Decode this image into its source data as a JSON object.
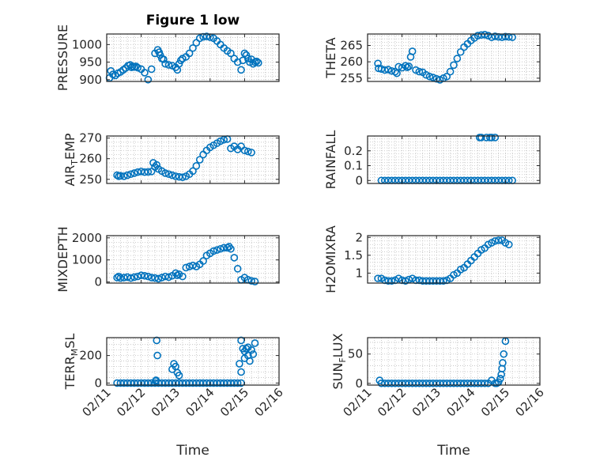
{
  "figure": {
    "title": "Figure 1 low",
    "marker_color": "#0072bd",
    "axis_color": "#262626",
    "grid_color": "#bfbfbf"
  },
  "chart_data": [
    {
      "type": "scatter",
      "marker": "circle-open",
      "title": "Figure 1 low",
      "ylabel": "PRESSURE",
      "ylabel_main": "PRESSURE",
      "ylabel_sub": "",
      "ylabel_tail": "",
      "xlabel": "",
      "ylim": [
        895,
        1030
      ],
      "yticks": [
        900,
        950,
        1000
      ],
      "ytick_labels": [
        "900",
        "950",
        "1000"
      ],
      "xlim": [
        0,
        5
      ],
      "xticks": [
        0,
        1,
        2,
        3,
        4,
        5
      ],
      "grid": true,
      "x": [
        0.08,
        0.12,
        0.18,
        0.25,
        0.32,
        0.4,
        0.48,
        0.55,
        0.62,
        0.68,
        0.72,
        0.75,
        0.8,
        0.85,
        0.9,
        1.0,
        1.1,
        1.2,
        1.3,
        1.4,
        1.48,
        1.52,
        1.55,
        1.6,
        1.65,
        1.7,
        1.8,
        1.9,
        2.0,
        2.05,
        2.1,
        2.15,
        2.2,
        2.3,
        2.4,
        2.5,
        2.6,
        2.7,
        2.8,
        2.9,
        3.0,
        3.1,
        3.2,
        3.3,
        3.4,
        3.5,
        3.6,
        3.7,
        3.8,
        3.9,
        3.95,
        4.0,
        4.05,
        4.1,
        4.15,
        4.2,
        4.25,
        4.3,
        4.35,
        4.4
      ],
      "y": [
        905,
        925,
        915,
        912,
        918,
        922,
        928,
        933,
        940,
        942,
        935,
        938,
        936,
        938,
        934,
        930,
        920,
        900,
        930,
        975,
        985,
        978,
        970,
        960,
        958,
        945,
        942,
        940,
        935,
        928,
        945,
        955,
        960,
        965,
        975,
        990,
        1005,
        1018,
        1022,
        1023,
        1021,
        1018,
        1010,
        1000,
        990,
        982,
        975,
        960,
        950,
        928,
        955,
        975,
        970,
        960,
        950,
        958,
        945,
        950,
        952,
        948
      ]
    },
    {
      "type": "scatter",
      "marker": "circle-open",
      "ylabel": "THETA",
      "ylabel_main": "THETA",
      "ylabel_sub": "",
      "ylabel_tail": "",
      "xlabel": "",
      "ylim": [
        254,
        268.5
      ],
      "yticks": [
        255,
        260,
        265
      ],
      "ytick_labels": [
        "255",
        "260",
        "265"
      ],
      "xlim": [
        0,
        5
      ],
      "xticks": [
        0,
        1,
        2,
        3,
        4,
        5
      ],
      "grid": true,
      "x": [
        0.3,
        0.32,
        0.4,
        0.5,
        0.6,
        0.7,
        0.8,
        0.85,
        0.9,
        1.0,
        1.1,
        1.15,
        1.2,
        1.25,
        1.3,
        1.4,
        1.5,
        1.6,
        1.7,
        1.8,
        1.9,
        2.0,
        2.1,
        2.2,
        2.3,
        2.4,
        2.5,
        2.6,
        2.7,
        2.8,
        2.9,
        3.0,
        3.1,
        3.2,
        3.3,
        3.4,
        3.5,
        3.6,
        3.7,
        3.8,
        3.9,
        4.0,
        4.1,
        4.2
      ],
      "y": [
        259.5,
        258,
        257.8,
        257.5,
        257.6,
        257.2,
        257,
        256.5,
        258.5,
        258.2,
        258.8,
        258.3,
        258.6,
        261.5,
        263.2,
        257.5,
        257,
        256.8,
        256,
        255.5,
        255.2,
        254.8,
        254.5,
        255,
        255.5,
        257,
        259,
        261,
        263,
        264.5,
        265.5,
        266.5,
        267.3,
        268,
        268.2,
        268.3,
        268,
        267.5,
        267.8,
        267.6,
        267.5,
        267.7,
        267.6,
        267.5
      ]
    },
    {
      "type": "scatter",
      "marker": "circle-open",
      "ylabel": "AIR_TEMP",
      "ylabel_main": "AIR",
      "ylabel_sub": "T",
      "ylabel_tail": "EMP",
      "xlabel": "",
      "ylim": [
        248,
        271
      ],
      "yticks": [
        250,
        260,
        270
      ],
      "ytick_labels": [
        "250",
        "260",
        "270"
      ],
      "xlim": [
        0,
        5
      ],
      "xticks": [
        0,
        1,
        2,
        3,
        4,
        5
      ],
      "grid": true,
      "x": [
        0.3,
        0.35,
        0.4,
        0.5,
        0.6,
        0.7,
        0.8,
        0.9,
        1.0,
        1.1,
        1.2,
        1.3,
        1.35,
        1.4,
        1.45,
        1.5,
        1.6,
        1.7,
        1.8,
        1.9,
        2.0,
        2.1,
        2.2,
        2.3,
        2.4,
        2.5,
        2.6,
        2.7,
        2.8,
        2.9,
        3.0,
        3.1,
        3.2,
        3.3,
        3.4,
        3.5,
        3.6,
        3.7,
        3.8,
        3.9,
        4.0,
        4.1,
        4.2
      ],
      "y": [
        252,
        251.5,
        251.7,
        251.5,
        252,
        252.5,
        253,
        253.5,
        253.8,
        253.5,
        253.6,
        253.8,
        258,
        256,
        257,
        255,
        254,
        253,
        252.5,
        252,
        251.5,
        251.2,
        251,
        251.5,
        252.5,
        254,
        256.5,
        259.5,
        262,
        264,
        265.5,
        266.5,
        267.5,
        268.5,
        269.2,
        269.5,
        265,
        266,
        264.5,
        266,
        264,
        263.5,
        263
      ]
    },
    {
      "type": "scatter",
      "marker": "circle-open",
      "ylabel": "RAINFALL",
      "ylabel_main": "RAINFALL",
      "ylabel_sub": "",
      "ylabel_tail": "",
      "xlabel": "",
      "ylim": [
        -0.02,
        0.3
      ],
      "yticks": [
        0,
        0.1,
        0.2
      ],
      "ytick_labels": [
        "0",
        "0.1",
        "0.2"
      ],
      "xlim": [
        0,
        5
      ],
      "xticks": [
        0,
        1,
        2,
        3,
        4,
        5
      ],
      "grid": true,
      "x": [
        0.4,
        0.5,
        0.6,
        0.7,
        0.8,
        0.9,
        1.0,
        1.1,
        1.2,
        1.3,
        1.4,
        1.5,
        1.6,
        1.7,
        1.8,
        1.9,
        2.0,
        2.1,
        2.2,
        2.3,
        2.4,
        2.5,
        2.6,
        2.7,
        2.8,
        2.9,
        3.0,
        3.1,
        3.2,
        3.3,
        3.4,
        3.5,
        3.6,
        3.7,
        3.8,
        3.9,
        4.0,
        4.1,
        4.2,
        3.25,
        3.3,
        3.45,
        3.55,
        3.6,
        3.7
      ],
      "y": [
        0,
        0,
        0,
        0,
        0,
        0,
        0,
        0,
        0,
        0,
        0,
        0,
        0,
        0,
        0,
        0,
        0,
        0,
        0,
        0,
        0,
        0,
        0,
        0,
        0,
        0,
        0,
        0,
        0,
        0,
        0,
        0,
        0,
        0,
        0,
        0,
        0,
        0,
        0,
        0.29,
        0.29,
        0.29,
        0.29,
        0.29,
        0.29
      ]
    },
    {
      "type": "scatter",
      "marker": "circle-open",
      "ylabel": "MIXDEPTH",
      "ylabel_main": "MIXDEPTH",
      "ylabel_sub": "",
      "ylabel_tail": "",
      "xlabel": "",
      "ylim": [
        -50,
        2100
      ],
      "yticks": [
        0,
        1000,
        2000
      ],
      "ytick_labels": [
        "0",
        "1000",
        "2000"
      ],
      "xlim": [
        0,
        5
      ],
      "xticks": [
        0,
        1,
        2,
        3,
        4,
        5
      ],
      "grid": true,
      "x": [
        0.3,
        0.35,
        0.4,
        0.5,
        0.6,
        0.7,
        0.8,
        0.9,
        1.0,
        1.1,
        1.2,
        1.3,
        1.4,
        1.5,
        1.6,
        1.7,
        1.8,
        1.9,
        2.0,
        2.05,
        2.1,
        2.2,
        2.3,
        2.4,
        2.5,
        2.6,
        2.7,
        2.8,
        2.9,
        3.0,
        3.1,
        3.2,
        3.3,
        3.4,
        3.5,
        3.55,
        3.6,
        3.7,
        3.8,
        3.9,
        4.0,
        4.1,
        4.2,
        4.3
      ],
      "y": [
        200,
        250,
        180,
        200,
        220,
        180,
        220,
        250,
        300,
        280,
        250,
        200,
        180,
        150,
        200,
        250,
        220,
        280,
        400,
        300,
        350,
        250,
        650,
        700,
        750,
        700,
        800,
        950,
        1200,
        1300,
        1400,
        1450,
        1500,
        1550,
        1550,
        1600,
        1500,
        1100,
        600,
        100,
        200,
        100,
        50,
        20
      ]
    },
    {
      "type": "scatter",
      "marker": "circle-open",
      "ylabel": "H2OMIXRA",
      "ylabel_main": "H2OMIXRA",
      "ylabel_sub": "",
      "ylabel_tail": "",
      "xlabel": "",
      "ylim": [
        0.72,
        2.05
      ],
      "yticks": [
        1,
        1.5,
        2
      ],
      "ytick_labels": [
        "1",
        "1.5",
        "2"
      ],
      "xlim": [
        0,
        5
      ],
      "xticks": [
        0,
        1,
        2,
        3,
        4,
        5
      ],
      "grid": true,
      "x": [
        0.3,
        0.4,
        0.5,
        0.6,
        0.7,
        0.8,
        0.9,
        1.0,
        1.1,
        1.2,
        1.3,
        1.4,
        1.5,
        1.6,
        1.7,
        1.8,
        1.9,
        2.0,
        2.1,
        2.2,
        2.3,
        2.4,
        2.5,
        2.6,
        2.7,
        2.8,
        2.9,
        3.0,
        3.1,
        3.2,
        3.3,
        3.4,
        3.5,
        3.6,
        3.7,
        3.8,
        3.9,
        4.0,
        4.1
      ],
      "y": [
        0.85,
        0.85,
        0.8,
        0.78,
        0.78,
        0.8,
        0.85,
        0.8,
        0.78,
        0.82,
        0.85,
        0.8,
        0.8,
        0.78,
        0.78,
        0.78,
        0.78,
        0.78,
        0.78,
        0.78,
        0.8,
        0.85,
        0.95,
        1.0,
        1.1,
        1.15,
        1.25,
        1.35,
        1.45,
        1.55,
        1.65,
        1.7,
        1.8,
        1.85,
        1.9,
        1.92,
        1.92,
        1.85,
        1.8
      ]
    },
    {
      "type": "scatter",
      "marker": "circle-open",
      "ylabel": "TERR_MSL",
      "ylabel_main": "TERR",
      "ylabel_sub": "M",
      "ylabel_tail": "SL",
      "xlabel": "Time",
      "ylim": [
        -15,
        330
      ],
      "yticks": [
        0,
        200
      ],
      "ytick_labels": [
        "0",
        "200"
      ],
      "xlim": [
        0,
        5
      ],
      "xticks": [
        0,
        1,
        2,
        3,
        4,
        5
      ],
      "xtick_labels": [
        "02/11",
        "02/12",
        "02/13",
        "02/14",
        "02/15",
        "02/16"
      ],
      "grid": true,
      "x": [
        0.3,
        0.4,
        0.5,
        0.6,
        0.7,
        0.8,
        0.9,
        1.0,
        1.1,
        1.2,
        1.3,
        1.4,
        1.5,
        1.6,
        1.7,
        1.8,
        1.9,
        2.0,
        2.1,
        2.2,
        2.3,
        2.4,
        2.5,
        2.6,
        2.7,
        2.8,
        2.9,
        3.0,
        3.1,
        3.2,
        3.3,
        3.4,
        3.5,
        3.6,
        3.7,
        3.8,
        3.9,
        1.45,
        1.47,
        1.43,
        1.42,
        1.9,
        1.95,
        2.0,
        2.05,
        2.1,
        3.9,
        3.95,
        4.0,
        4.05,
        4.1,
        4.15,
        4.2,
        4.25,
        4.3,
        3.85,
        3.9,
        4.0,
        4.1
      ],
      "y": [
        0,
        0,
        0,
        0,
        0,
        0,
        0,
        0,
        0,
        0,
        0,
        0,
        0,
        0,
        0,
        0,
        0,
        0,
        0,
        0,
        0,
        0,
        0,
        0,
        0,
        0,
        0,
        0,
        0,
        0,
        0,
        0,
        0,
        0,
        0,
        0,
        0,
        310,
        200,
        20,
        15,
        100,
        140,
        120,
        75,
        55,
        310,
        250,
        230,
        250,
        200,
        160,
        240,
        210,
        290,
        140,
        80,
        180,
        260
      ]
    },
    {
      "type": "scatter",
      "marker": "circle-open",
      "ylabel": "SUN_FLUX",
      "ylabel_main": "SUN",
      "ylabel_sub": "F",
      "ylabel_tail": "LUX",
      "xlabel": "Time",
      "ylim": [
        -3,
        78
      ],
      "yticks": [
        0,
        50
      ],
      "ytick_labels": [
        "0",
        "50"
      ],
      "xlim": [
        0,
        5
      ],
      "xticks": [
        0,
        1,
        2,
        3,
        4,
        5
      ],
      "xtick_labels": [
        "02/11",
        "02/12",
        "02/13",
        "02/14",
        "02/15",
        "02/16"
      ],
      "grid": true,
      "x": [
        0.35,
        0.4,
        0.5,
        0.6,
        0.7,
        0.8,
        0.9,
        1.0,
        1.1,
        1.2,
        1.3,
        1.4,
        1.5,
        1.6,
        1.7,
        1.8,
        1.9,
        2.0,
        2.1,
        2.2,
        2.3,
        2.4,
        2.5,
        2.6,
        2.7,
        2.8,
        2.9,
        3.0,
        3.1,
        3.2,
        3.3,
        3.4,
        3.5,
        3.6,
        3.7,
        3.75,
        3.8,
        3.85,
        3.88,
        3.9,
        3.92,
        3.95,
        4.0
      ],
      "y": [
        5,
        0,
        0,
        0,
        0,
        0,
        0,
        0,
        0,
        0,
        0,
        0,
        0,
        0,
        0,
        0,
        0,
        0,
        0,
        0,
        0,
        0,
        0,
        0,
        0,
        0,
        0,
        0,
        0,
        0,
        0,
        0,
        0,
        5,
        0,
        0,
        2,
        8,
        15,
        25,
        35,
        50,
        72
      ]
    }
  ]
}
